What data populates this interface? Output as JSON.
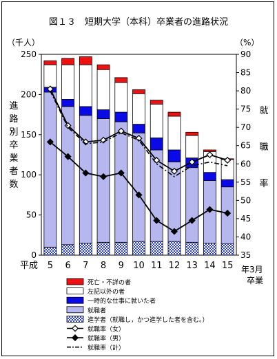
{
  "chart_data": {
    "type": "bar",
    "title": "図１３　短期大学（本科）卒業者の進路状況",
    "left_axis_unit": "（千人）",
    "right_axis_unit": "（%）",
    "left_axis_label": [
      "進",
      "路",
      "別",
      "卒",
      "業",
      "者",
      "数"
    ],
    "right_axis_label": [
      "就",
      "職",
      "率"
    ],
    "x_prefix": "平成",
    "x_suffix": [
      "年3月",
      "卒業"
    ],
    "categories": [
      "5",
      "6",
      "7",
      "8",
      "9",
      "10",
      "11",
      "12",
      "13",
      "14",
      "15"
    ],
    "left_ticks": [
      0,
      50,
      100,
      150,
      200,
      250
    ],
    "right_ticks": [
      35,
      40,
      45,
      50,
      55,
      60,
      65,
      70,
      75,
      80,
      85,
      90
    ],
    "ylim_left": [
      0,
      250
    ],
    "ylim_right": [
      35,
      90
    ],
    "stack_series": [
      {
        "name": "進学者（就職し，かつ進学した者を含む。）",
        "color": "#2a3fd8",
        "pattern": "checker",
        "values": [
          10,
          13,
          15,
          16,
          16,
          17,
          17,
          17,
          16,
          15,
          14
        ]
      },
      {
        "name": "就職者",
        "color": "#b7b7f0",
        "pattern": "solid",
        "values": [
          193,
          172,
          159,
          154,
          150,
          135,
          114,
          99,
          93,
          78,
          71
        ]
      },
      {
        "name": "一時的な仕事に就いた者",
        "color": "#0a0ae6",
        "pattern": "solid",
        "values": [
          6,
          9,
          11,
          11,
          12,
          11,
          15,
          15,
          12,
          10,
          9
        ]
      },
      {
        "name": "左記以外の者",
        "color": "#ffffff",
        "pattern": "solid",
        "values": [
          28,
          43,
          52,
          50,
          37,
          38,
          42,
          42,
          28,
          26,
          25
        ]
      },
      {
        "name": "死亡・不詳の者",
        "color": "#ee1111",
        "pattern": "solid",
        "values": [
          5,
          8,
          10,
          6,
          6,
          5,
          5,
          5,
          4,
          2,
          1
        ]
      }
    ],
    "line_series": [
      {
        "name": "就職率（女）",
        "marker": "open-diamond",
        "dash": "solid",
        "values": [
          80.5,
          70.5,
          66,
          66.5,
          69,
          67,
          61,
          58,
          60.5,
          62.5,
          61
        ]
      },
      {
        "name": "就職率（男）",
        "marker": "filled-diamond",
        "dash": "solid",
        "values": [
          66,
          62,
          57.5,
          56.5,
          57.5,
          51.5,
          44.5,
          41.5,
          44.5,
          47.5,
          46.5
        ]
      },
      {
        "name": "就職率（計）",
        "marker": "none",
        "dash": "dashdot",
        "values": [
          80,
          70,
          65.5,
          66,
          68.5,
          66.5,
          60,
          56.5,
          59.5,
          60.5,
          59.5
        ]
      }
    ]
  }
}
